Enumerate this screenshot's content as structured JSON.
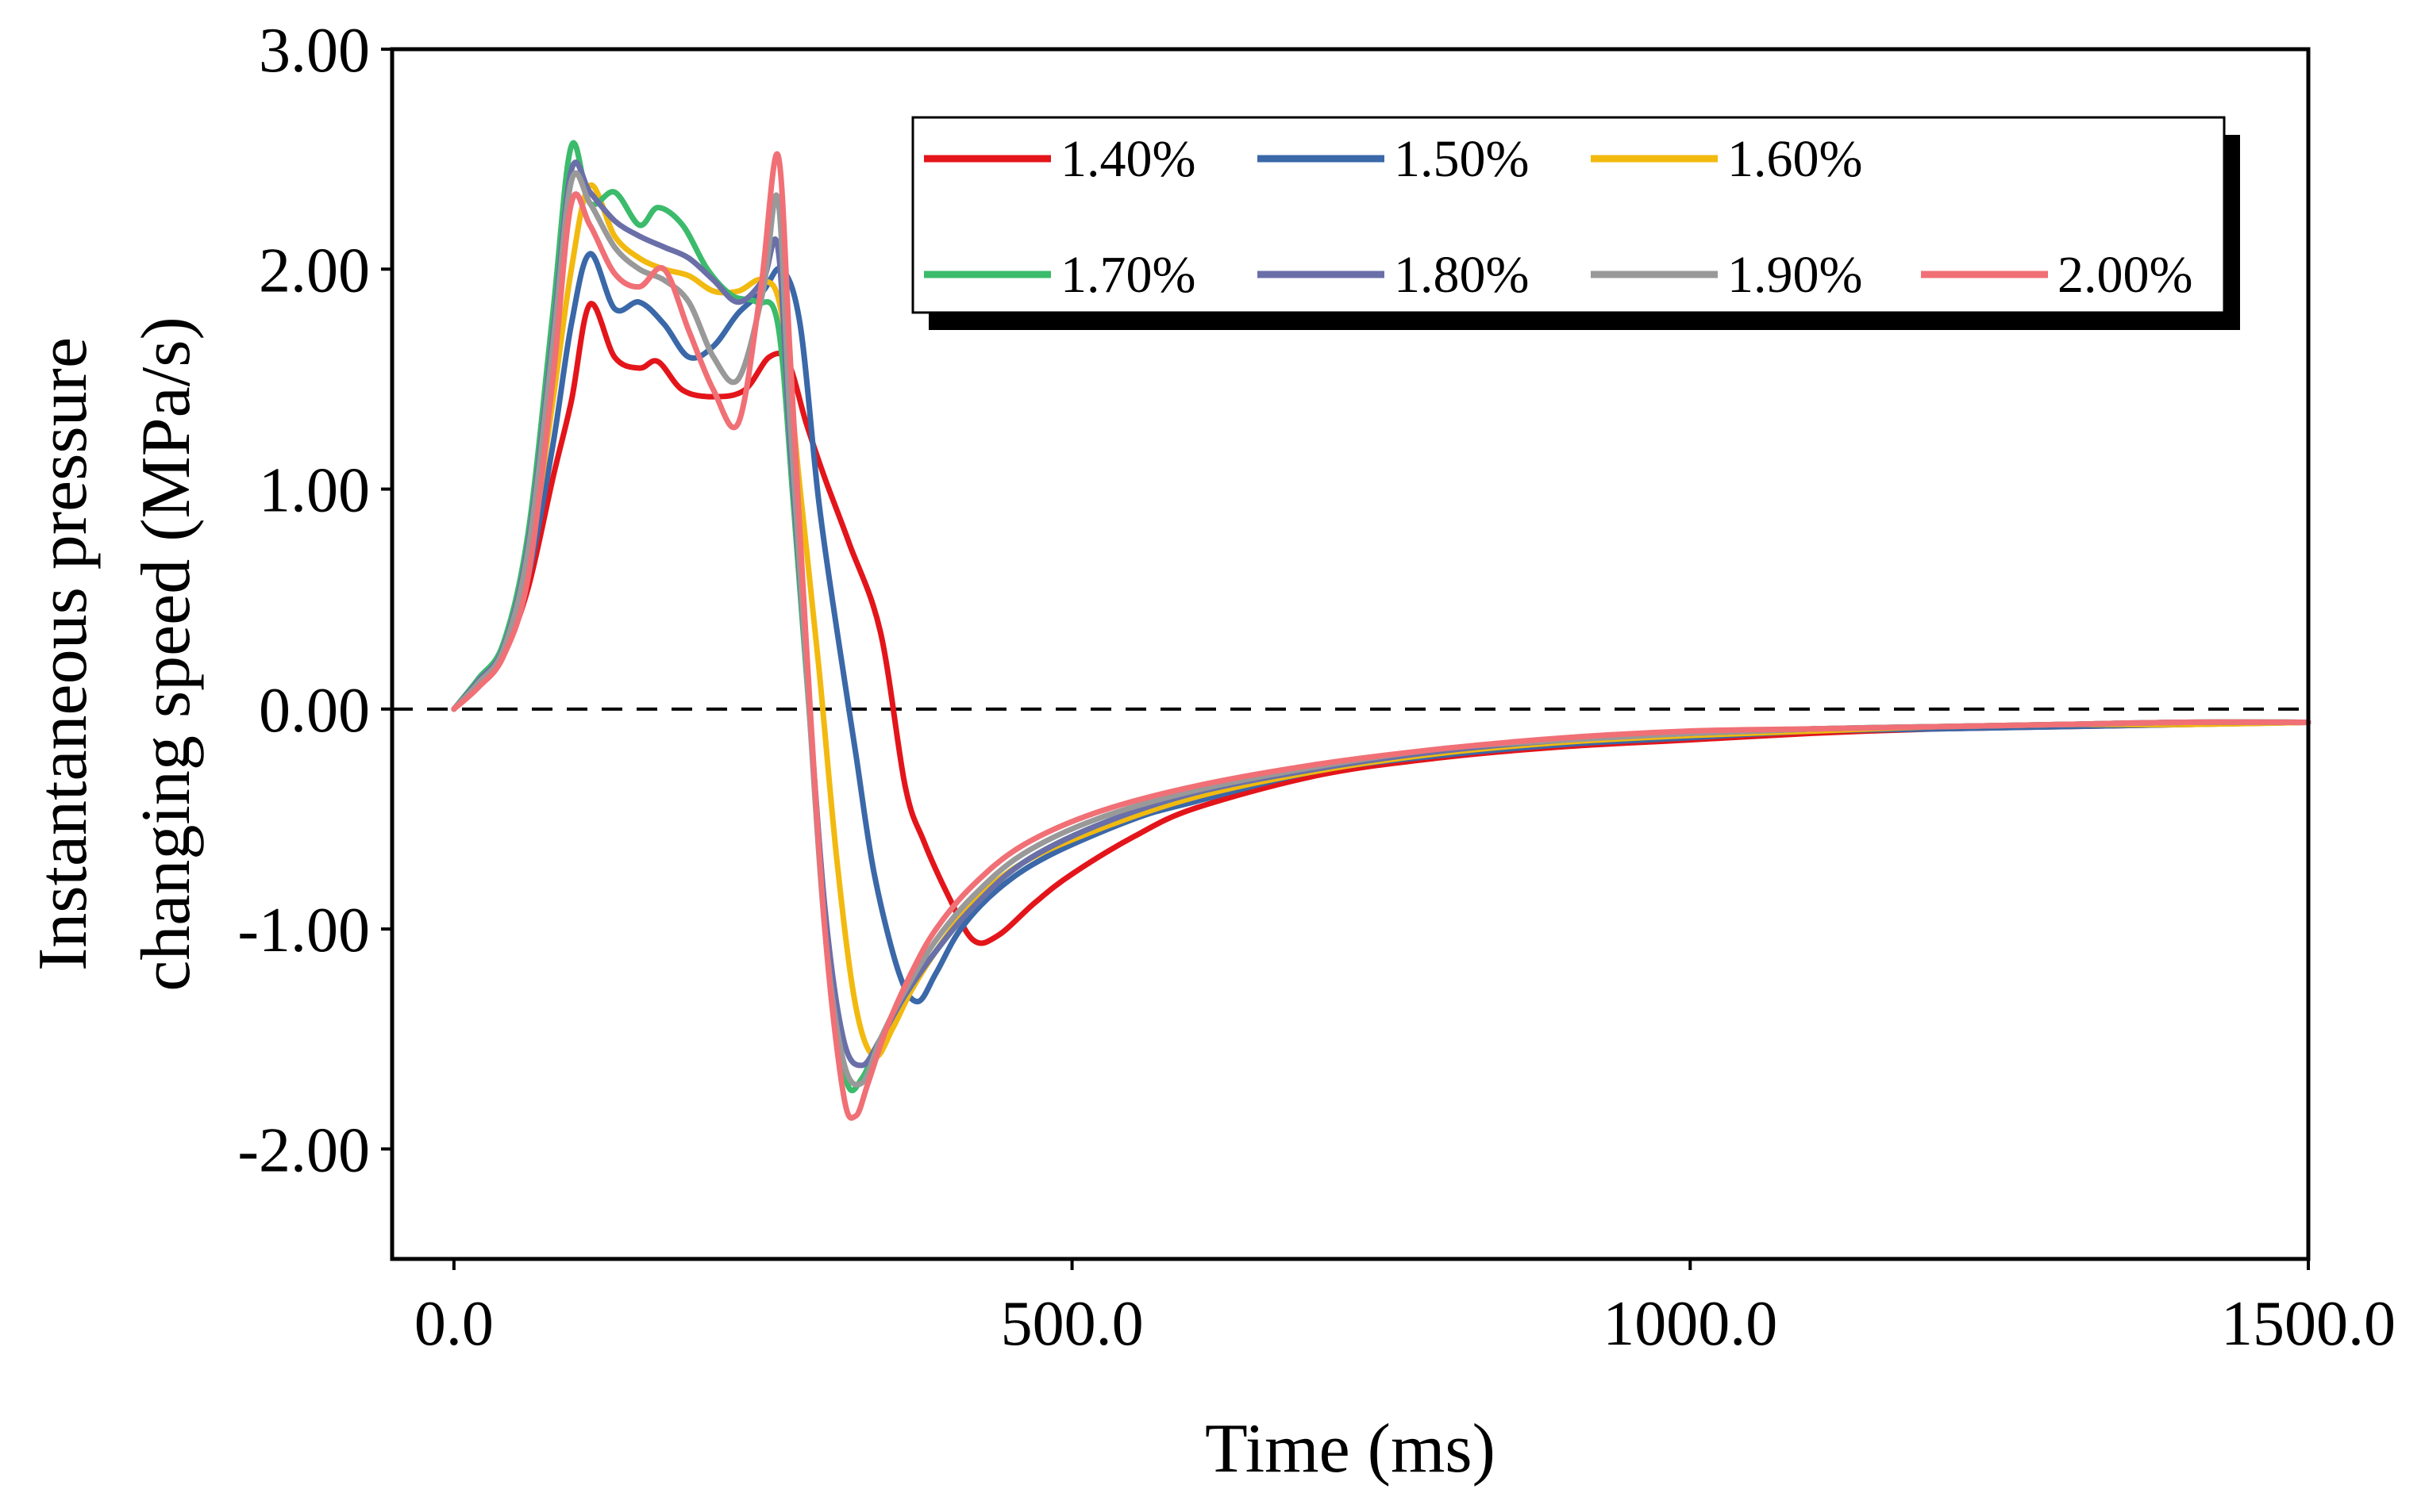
{
  "chart_data": {
    "type": "line",
    "title": "",
    "xlabel": "Time (ms)",
    "ylabel_line1": "Instantaneous pressure",
    "ylabel_line2": "changing speed (MPa/s)",
    "xlim": [
      -50,
      1500
    ],
    "ylim": [
      -2.5,
      3.0
    ],
    "xticks": [
      0,
      500,
      1000,
      1500
    ],
    "xtick_labels": [
      "0.0",
      "500.0",
      "1000.0",
      "1500.0"
    ],
    "yticks": [
      3,
      2,
      1,
      0,
      -1,
      -2
    ],
    "ytick_labels": [
      "3.00",
      "2.00",
      "1.00",
      "0.00",
      "-1.00",
      "-2.00"
    ],
    "reference_line": {
      "y": 0,
      "style": "dashed"
    },
    "legend_position": "top-right",
    "grid": false,
    "series": [
      {
        "name": "1.40%",
        "color": "#e3151a",
        "x": [
          0,
          20,
          40,
          60,
          80,
          95,
          110,
          130,
          150,
          165,
          185,
          210,
          235,
          255,
          270,
          285,
          300,
          320,
          345,
          365,
          380,
          400,
          420,
          440,
          470,
          500,
          550,
          600,
          700,
          800,
          900,
          1000,
          1100,
          1200,
          1300,
          1400,
          1500
        ],
        "y": [
          0.0,
          0.12,
          0.25,
          0.55,
          1.05,
          1.4,
          1.84,
          1.6,
          1.55,
          1.58,
          1.45,
          1.42,
          1.45,
          1.6,
          1.58,
          1.3,
          1.05,
          0.75,
          0.35,
          -0.35,
          -0.6,
          -0.85,
          -1.05,
          -1.03,
          -0.88,
          -0.75,
          -0.58,
          -0.45,
          -0.3,
          -0.22,
          -0.17,
          -0.14,
          -0.11,
          -0.09,
          -0.08,
          -0.07,
          -0.06
        ]
      },
      {
        "name": "1.50%",
        "color": "#3a68a8",
        "x": [
          0,
          20,
          40,
          60,
          80,
          95,
          110,
          130,
          150,
          170,
          190,
          210,
          230,
          250,
          265,
          280,
          295,
          310,
          325,
          340,
          360,
          375,
          390,
          410,
          440,
          480,
          550,
          600,
          700,
          800,
          900,
          1000,
          1100,
          1200,
          1300,
          1400,
          1500
        ],
        "y": [
          0.0,
          0.12,
          0.25,
          0.6,
          1.2,
          1.75,
          2.07,
          1.82,
          1.85,
          1.75,
          1.6,
          1.65,
          1.8,
          1.9,
          2.0,
          1.75,
          0.95,
          0.35,
          -0.2,
          -0.75,
          -1.2,
          -1.33,
          -1.2,
          -1.0,
          -0.82,
          -0.67,
          -0.5,
          -0.42,
          -0.28,
          -0.21,
          -0.16,
          -0.13,
          -0.1,
          -0.09,
          -0.08,
          -0.07,
          -0.06
        ]
      },
      {
        "name": "1.60%",
        "color": "#f2b90f",
        "x": [
          0,
          20,
          40,
          60,
          80,
          95,
          110,
          130,
          150,
          170,
          190,
          210,
          230,
          250,
          265,
          280,
          295,
          310,
          325,
          340,
          355,
          370,
          390,
          420,
          460,
          520,
          600,
          700,
          800,
          900,
          1000,
          1100,
          1200,
          1300,
          1400,
          1500
        ],
        "y": [
          0.0,
          0.12,
          0.26,
          0.65,
          1.4,
          2.0,
          2.38,
          2.15,
          2.05,
          2.0,
          1.97,
          1.9,
          1.9,
          1.95,
          1.8,
          1.0,
          0.2,
          -0.7,
          -1.35,
          -1.58,
          -1.45,
          -1.28,
          -1.1,
          -0.88,
          -0.7,
          -0.55,
          -0.4,
          -0.28,
          -0.2,
          -0.15,
          -0.12,
          -0.1,
          -0.08,
          -0.07,
          -0.07,
          -0.06
        ]
      },
      {
        "name": "1.70%",
        "color": "#3bbb6b",
        "x": [
          0,
          20,
          40,
          60,
          80,
          95,
          110,
          130,
          150,
          165,
          185,
          205,
          225,
          245,
          262,
          275,
          290,
          305,
          318,
          330,
          345,
          365,
          390,
          420,
          460,
          520,
          600,
          700,
          800,
          900,
          1000,
          1100,
          1200,
          1300,
          1400,
          1500
        ],
        "y": [
          0.0,
          0.14,
          0.3,
          0.8,
          1.8,
          2.56,
          2.3,
          2.35,
          2.2,
          2.28,
          2.2,
          2.0,
          1.88,
          1.85,
          1.75,
          0.9,
          -0.2,
          -1.25,
          -1.7,
          -1.68,
          -1.5,
          -1.3,
          -1.1,
          -0.9,
          -0.7,
          -0.53,
          -0.38,
          -0.27,
          -0.19,
          -0.14,
          -0.11,
          -0.09,
          -0.08,
          -0.07,
          -0.06,
          -0.06
        ]
      },
      {
        "name": "1.80%",
        "color": "#6a6fa8",
        "x": [
          0,
          20,
          40,
          60,
          80,
          95,
          110,
          130,
          150,
          170,
          190,
          210,
          230,
          250,
          262,
          272,
          285,
          300,
          315,
          330,
          345,
          365,
          390,
          420,
          460,
          520,
          600,
          700,
          800,
          900,
          1000,
          1100,
          1200,
          1300,
          1400,
          1500
        ],
        "y": [
          0.0,
          0.13,
          0.28,
          0.75,
          1.7,
          2.45,
          2.35,
          2.22,
          2.15,
          2.1,
          2.05,
          1.95,
          1.85,
          1.95,
          2.1,
          1.2,
          0.2,
          -0.9,
          -1.5,
          -1.62,
          -1.5,
          -1.3,
          -1.1,
          -0.9,
          -0.7,
          -0.53,
          -0.38,
          -0.27,
          -0.19,
          -0.14,
          -0.11,
          -0.09,
          -0.08,
          -0.07,
          -0.06,
          -0.06
        ]
      },
      {
        "name": "1.90%",
        "color": "#999999",
        "x": [
          0,
          20,
          40,
          60,
          80,
          95,
          110,
          130,
          150,
          170,
          190,
          210,
          230,
          250,
          262,
          272,
          285,
          300,
          315,
          330,
          345,
          365,
          390,
          420,
          460,
          520,
          600,
          700,
          800,
          900,
          1000,
          1100,
          1200,
          1300,
          1400,
          1500
        ],
        "y": [
          0.0,
          0.12,
          0.27,
          0.72,
          1.65,
          2.4,
          2.3,
          2.1,
          2.0,
          1.95,
          1.85,
          1.6,
          1.5,
          1.9,
          2.32,
          1.3,
          0.2,
          -1.0,
          -1.6,
          -1.7,
          -1.5,
          -1.28,
          -1.05,
          -0.85,
          -0.66,
          -0.5,
          -0.37,
          -0.26,
          -0.18,
          -0.14,
          -0.11,
          -0.09,
          -0.08,
          -0.07,
          -0.06,
          -0.06
        ]
      },
      {
        "name": "2.00%",
        "color": "#f07076",
        "x": [
          0,
          20,
          40,
          60,
          80,
          95,
          110,
          130,
          150,
          170,
          190,
          210,
          230,
          248,
          262,
          272,
          285,
          300,
          315,
          325,
          335,
          350,
          370,
          390,
          420,
          460,
          520,
          600,
          700,
          800,
          900,
          1000,
          1100,
          1200,
          1300,
          1400,
          1500
        ],
        "y": [
          0.0,
          0.1,
          0.24,
          0.6,
          1.5,
          2.3,
          2.2,
          1.98,
          1.92,
          2.0,
          1.72,
          1.45,
          1.3,
          1.9,
          2.52,
          1.6,
          0.3,
          -1.0,
          -1.75,
          -1.85,
          -1.7,
          -1.45,
          -1.2,
          -1.0,
          -0.8,
          -0.62,
          -0.47,
          -0.35,
          -0.25,
          -0.18,
          -0.13,
          -0.1,
          -0.09,
          -0.08,
          -0.07,
          -0.06,
          -0.06
        ]
      }
    ]
  }
}
